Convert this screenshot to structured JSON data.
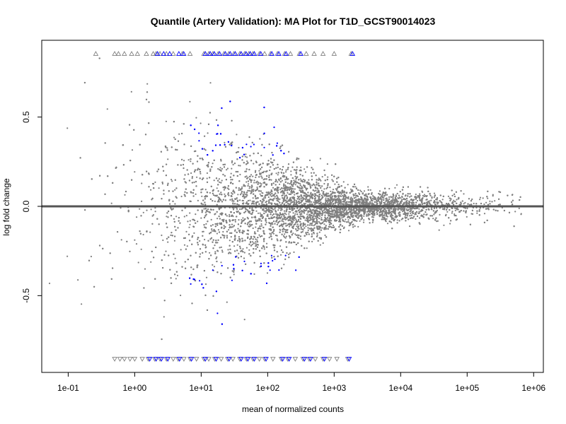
{
  "chart_data": {
    "type": "scatter",
    "title": "Quantile (Artery Validation): MA Plot for T1D_GCST90014023",
    "xlabel": "mean of normalized counts",
    "ylabel": "log fold change",
    "x_scale": "log10",
    "xlim": [
      0.04,
      1400000
    ],
    "ylim": [
      -0.93,
      0.93
    ],
    "x_ticks": [
      0.1,
      1,
      10,
      100,
      1000,
      10000,
      100000,
      1000000
    ],
    "x_tick_labels": [
      "1e-01",
      "1e+00",
      "1e+01",
      "1e+02",
      "1e+03",
      "1e+04",
      "1e+05",
      "1e+06"
    ],
    "y_ticks": [
      -0.5,
      0.0,
      0.5
    ],
    "y_tick_labels": [
      "-0.5",
      "0.0",
      "0.5"
    ],
    "reference_line": {
      "y": 0,
      "color": "#555555"
    },
    "colors": {
      "not_significant": "#808080",
      "significant": "#0000ff",
      "reference_line": "#555555"
    },
    "grid": false,
    "series": [
      {
        "points_description_note": "",
        "color": "#808080",
        "marker": "dot"
      }
    ],
    "capped_points": {
      "top": [
        0.26,
        0.5,
        0.57,
        0.7,
        0.9,
        1.1,
        1.5,
        1.9,
        2.1,
        2.4,
        3.0,
        3.8,
        5.2,
        6.8,
        11,
        13,
        15,
        18,
        22,
        26,
        31,
        38,
        45,
        52,
        60,
        75,
        90,
        110,
        140,
        180,
        220,
        300,
        380,
        500,
        680,
        1000,
        1800
      ],
      "top_significant": [
        2.1,
        2.6,
        3.2,
        4.4,
        5.2,
        11,
        13,
        15,
        18,
        22,
        26,
        31,
        38,
        45,
        52,
        60,
        75,
        110,
        140,
        180,
        300,
        1800
      ],
      "bottom": [
        0.5,
        0.6,
        0.7,
        0.85,
        1.0,
        1.3,
        1.6,
        2.0,
        2.4,
        3.0,
        3.8,
        4.5,
        5.5,
        6.8,
        8.5,
        11,
        13,
        16,
        20,
        25,
        30,
        38,
        48,
        60,
        75,
        90,
        120,
        160,
        200,
        260,
        340,
        420,
        520,
        680,
        850,
        1100,
        1600
      ],
      "bottom_significant": [
        1.6,
        2.0,
        2.4,
        3.0,
        4.5,
        6.8,
        11,
        16,
        25,
        38,
        48,
        60,
        90,
        160,
        200,
        340,
        420,
        680,
        1600
      ]
    }
  }
}
